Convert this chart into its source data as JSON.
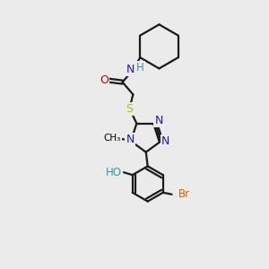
{
  "background_color": "#ebebeb",
  "bond_color": "#1a1a1a",
  "fig_size": [
    3.0,
    3.0
  ],
  "dpi": 100,
  "colors": {
    "N": "#1a1acc",
    "O": "#cc0000",
    "S": "#b8b800",
    "Br": "#cc6600",
    "H": "#3a9999",
    "C": "#1a1a1a"
  }
}
